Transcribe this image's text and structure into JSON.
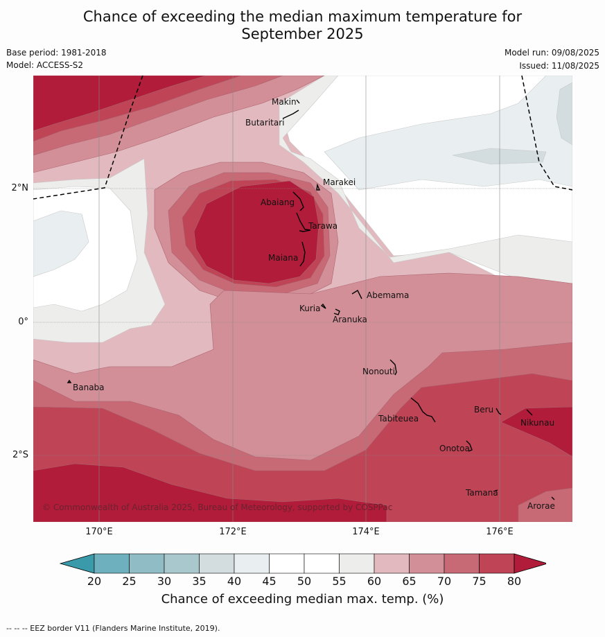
{
  "title_line1": "Chance of exceeding the median maximum temperature for",
  "title_line2": "September 2025",
  "base_period": "Base period: 1981-2018",
  "model": "Model: ACCESS-S2",
  "model_run": "Model run: 09/08/2025",
  "issued": "Issued: 11/08/2025",
  "lat_labels": [
    "2°N",
    "0°",
    "2°S"
  ],
  "lon_labels": [
    "170°E",
    "172°E",
    "174°E",
    "176°E"
  ],
  "places": {
    "makin": "Makin",
    "butaritari": "Butaritari",
    "marakei": "Marakei",
    "abaiang": "Abaiang",
    "tarawa": "Tarawa",
    "maiana": "Maiana",
    "abemama": "Abemama",
    "kuria": "Kuria",
    "aranuka": "Aranuka",
    "banaba": "Banaba",
    "nonouti": "Nonouti",
    "beru": "Beru",
    "tabiteuea": "Tabiteuea",
    "nikunau": "Nikunau",
    "onotoa": "Onotoa",
    "tamana": "Tamana",
    "arorae": "Arorae"
  },
  "copyright": "© Commonwealth of Australia 2025, Bureau of Meteorology, supported by COSPPac",
  "colorbar": {
    "ticks": [
      "20",
      "25",
      "30",
      "35",
      "40",
      "45",
      "50",
      "55",
      "60",
      "65",
      "70",
      "75",
      "80"
    ],
    "colors": [
      "#3a9aa9",
      "#6eb0bd",
      "#90bcc6",
      "#a9c8ce",
      "#d3dcdf",
      "#e9eff1",
      "#ffffff",
      "#ffffff",
      "#ededec",
      "#e2b9bf",
      "#d38f97",
      "#c76a76",
      "#be4456",
      "#b01c39"
    ],
    "title": "Chance of exceeding median max. temp. (%)"
  },
  "footer": "--  --  -- EEZ border V11 (Flanders Marine Institute, 2019)."
}
